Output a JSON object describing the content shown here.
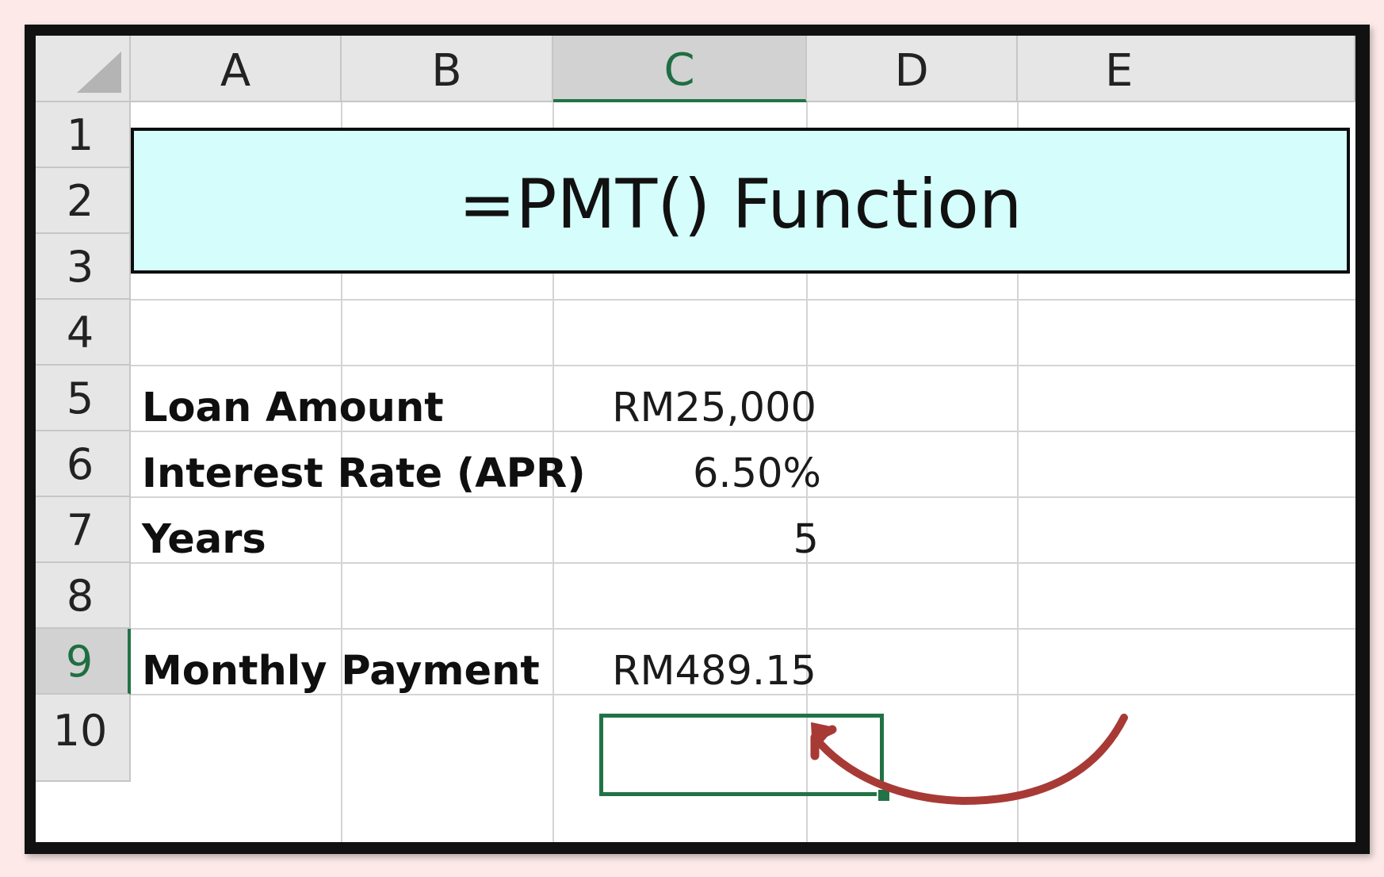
{
  "spreadsheet": {
    "columns": [
      "A",
      "B",
      "C",
      "D",
      "E"
    ],
    "selected_column": "C",
    "rows": [
      "1",
      "2",
      "3",
      "4",
      "5",
      "6",
      "7",
      "8",
      "9",
      "10"
    ],
    "selected_row": "9",
    "selected_cell": "C9",
    "title": "=PMT() Function",
    "cells": {
      "loan_label": "Loan Amount",
      "loan_value": "RM25,000",
      "rate_label": "Interest Rate (APR)",
      "rate_value": "6.50%",
      "years_label": "Years",
      "years_value": "5",
      "payment_label": "Monthly Payment",
      "payment_value": "RM489.15"
    }
  },
  "colors": {
    "background": "#fce9e8",
    "title_fill": "#d4fdfc",
    "selection": "#217346",
    "arrow": "#a83a36",
    "header": "#e6e6e6"
  },
  "icons": {
    "select_all": "select-all-triangle-icon",
    "annotation": "curved-arrow-icon"
  }
}
